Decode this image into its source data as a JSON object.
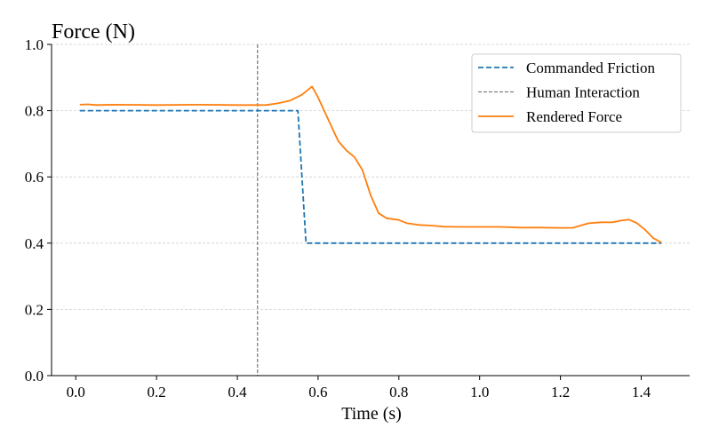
{
  "chart_data": {
    "type": "line",
    "title": "Force (N)",
    "xlabel": "Time (s)",
    "ylabel": "",
    "xlim": [
      -0.06,
      1.52
    ],
    "ylim": [
      0.0,
      1.0
    ],
    "x_ticks": [
      0.0,
      0.2,
      0.4,
      0.6,
      0.8,
      1.0,
      1.2,
      1.4
    ],
    "x_tick_labels": [
      "0.0",
      "0.2",
      "0.4",
      "0.6",
      "0.8",
      "1.0",
      "1.2",
      "1.4"
    ],
    "y_ticks": [
      0.0,
      0.2,
      0.4,
      0.6,
      0.8,
      1.0
    ],
    "y_tick_labels": [
      "0.0",
      "0.2",
      "0.4",
      "0.6",
      "0.8",
      "1.0"
    ],
    "grid": "horizontal",
    "legend_position": "top-right",
    "series": [
      {
        "name": "Commanded Friction",
        "style": "dashed",
        "color": "#1f77b4",
        "x": [
          0.01,
          0.55,
          0.57,
          1.45
        ],
        "y": [
          0.8,
          0.8,
          0.4,
          0.4
        ]
      },
      {
        "name": "Rendered Force",
        "style": "solid",
        "color": "#ff7f0e",
        "x": [
          0.01,
          0.03,
          0.05,
          0.1,
          0.2,
          0.3,
          0.4,
          0.45,
          0.47,
          0.5,
          0.53,
          0.56,
          0.585,
          0.6,
          0.63,
          0.65,
          0.67,
          0.69,
          0.71,
          0.73,
          0.75,
          0.77,
          0.8,
          0.82,
          0.85,
          0.88,
          0.91,
          0.95,
          1.0,
          1.05,
          1.1,
          1.15,
          1.2,
          1.23,
          1.25,
          1.27,
          1.3,
          1.33,
          1.35,
          1.37,
          1.39,
          1.41,
          1.43,
          1.45
        ],
        "y": [
          0.818,
          0.819,
          0.817,
          0.818,
          0.817,
          0.818,
          0.817,
          0.817,
          0.817,
          0.822,
          0.83,
          0.848,
          0.873,
          0.84,
          0.76,
          0.708,
          0.68,
          0.66,
          0.62,
          0.545,
          0.49,
          0.475,
          0.47,
          0.46,
          0.455,
          0.453,
          0.45,
          0.449,
          0.449,
          0.449,
          0.447,
          0.447,
          0.446,
          0.446,
          0.453,
          0.46,
          0.463,
          0.463,
          0.468,
          0.471,
          0.46,
          0.44,
          0.415,
          0.402
        ]
      }
    ],
    "vlines": [
      {
        "name": "Human Interaction",
        "x": 0.45,
        "style": "dashed",
        "color": "#808080"
      }
    ]
  }
}
